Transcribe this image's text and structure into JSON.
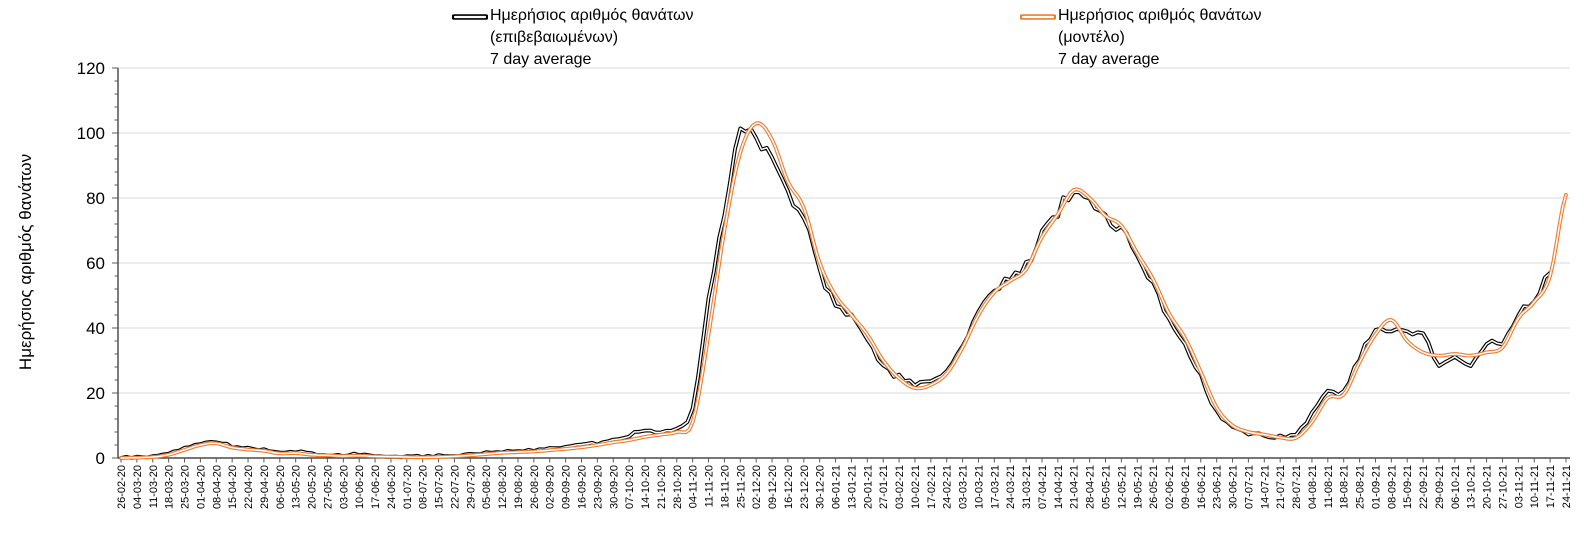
{
  "chart_data": {
    "type": "line",
    "title": "",
    "xlabel": "",
    "ylabel": "Ημερήσιος αριθμός θανάτων",
    "ylim": [
      0,
      120
    ],
    "y_ticks": [
      0,
      20,
      40,
      60,
      80,
      100,
      120
    ],
    "y_minor_unit": 4,
    "grid": "horizontal-major",
    "legend_position": "top",
    "categories": [
      "26-02-20",
      "04-03-20",
      "11-03-20",
      "18-03-20",
      "25-03-20",
      "01-04-20",
      "08-04-20",
      "15-04-20",
      "22-04-20",
      "29-04-20",
      "06-05-20",
      "13-05-20",
      "20-05-20",
      "27-05-20",
      "03-06-20",
      "10-06-20",
      "17-06-20",
      "24-06-20",
      "01-07-20",
      "08-07-20",
      "15-07-20",
      "22-07-20",
      "29-07-20",
      "05-08-20",
      "12-08-20",
      "19-08-20",
      "26-08-20",
      "02-09-20",
      "09-09-20",
      "16-09-20",
      "23-09-20",
      "30-09-20",
      "07-10-20",
      "14-10-20",
      "21-10-20",
      "28-10-20",
      "04-11-20",
      "11-11-20",
      "18-11-20",
      "25-11-20",
      "02-12-20",
      "09-12-20",
      "16-12-20",
      "23-12-20",
      "30-12-20",
      "06-01-21",
      "13-01-21",
      "20-01-21",
      "27-01-21",
      "03-02-21",
      "10-02-21",
      "17-02-21",
      "24-02-21",
      "03-03-21",
      "10-03-21",
      "17-03-21",
      "24-03-21",
      "31-03-21",
      "07-04-21",
      "14-04-21",
      "21-04-21",
      "28-04-21",
      "05-05-21",
      "12-05-21",
      "19-05-21",
      "26-05-21",
      "02-06-21",
      "09-06-21",
      "16-06-21",
      "23-06-21",
      "30-06-21",
      "07-07-21",
      "14-07-21",
      "21-07-21",
      "28-07-21",
      "04-08-21",
      "11-08-21",
      "18-08-21",
      "25-08-21",
      "01-09-21",
      "08-09-21",
      "15-09-21",
      "22-09-21",
      "29-09-21",
      "06-10-21",
      "13-10-21",
      "20-10-21",
      "27-10-21",
      "03-11-21",
      "10-11-21",
      "17-11-21",
      "24-11-21"
    ],
    "series": [
      {
        "name": "Ημερήσιος αριθμός θανάτων (επιβεβαιωμένων) 7 day average",
        "legend_lines": [
          "Ημερήσιος αριθμός θανάτων",
          "(επιβεβαιωμένων)",
          "7 day average"
        ],
        "color": "#000000",
        "line_style": "outlined-double",
        "values": [
          0,
          0.2,
          0.5,
          1.5,
          3,
          4.5,
          5,
          3.5,
          3,
          2.5,
          1.5,
          2,
          1.2,
          1,
          0.8,
          1.2,
          0.8,
          0.6,
          0.5,
          0.5,
          0.6,
          0.8,
          1,
          1.5,
          2,
          2.2,
          2.5,
          3,
          3.5,
          4,
          4.5,
          5.5,
          7,
          8.5,
          8,
          9.5,
          15,
          48,
          76,
          100,
          98,
          92,
          82,
          74,
          57,
          48,
          43,
          36,
          28,
          25,
          23,
          23.5,
          27,
          35,
          45,
          52,
          55,
          59,
          69,
          76,
          82,
          79,
          73.5,
          70.5,
          62,
          53.5,
          43,
          35,
          25,
          14,
          9.5,
          7.5,
          7,
          6.5,
          7.5,
          13.5,
          21,
          20,
          31,
          39,
          40,
          38,
          38,
          29,
          31,
          28.5,
          35,
          35.5,
          44,
          49,
          57,
          null
        ]
      },
      {
        "name": "Ημερήσιος αριθμός θανάτων (μοντέλο) 7 day average",
        "legend_lines": [
          "Ημερήσιος αριθμός θανάτων",
          "(μοντέλο)",
          "7 day average"
        ],
        "color": "#ED7D31",
        "line_style": "outlined-double",
        "values": [
          0,
          0.1,
          0.3,
          1,
          2.5,
          4,
          4.5,
          3.2,
          2.6,
          2.2,
          1.4,
          1.5,
          1,
          0.8,
          0.6,
          0.7,
          0.5,
          0.4,
          0.3,
          0.2,
          0.3,
          0.5,
          0.8,
          1.2,
          1.6,
          1.8,
          2,
          2.4,
          2.8,
          3.3,
          4,
          4.8,
          5.5,
          6.5,
          7.2,
          8,
          11,
          38,
          70,
          94,
          103,
          98,
          85,
          77,
          60,
          50,
          44,
          38,
          30,
          24.5,
          21.5,
          22.5,
          26,
          34,
          44,
          51,
          54.5,
          58,
          68,
          75,
          82.5,
          80,
          74.5,
          71.5,
          63,
          55,
          44.5,
          37,
          26.5,
          15.5,
          10,
          8,
          7.2,
          6.3,
          6.2,
          11,
          18.5,
          19.5,
          29.5,
          38,
          42.5,
          36,
          32.5,
          31.5,
          32,
          31.5,
          32.5,
          34,
          43,
          48,
          56,
          81
        ]
      }
    ]
  },
  "colors": {
    "gridline": "#D9D9D9",
    "axis_line": "#262626",
    "tick_mark": "#595959",
    "tick_label": "#000000"
  }
}
